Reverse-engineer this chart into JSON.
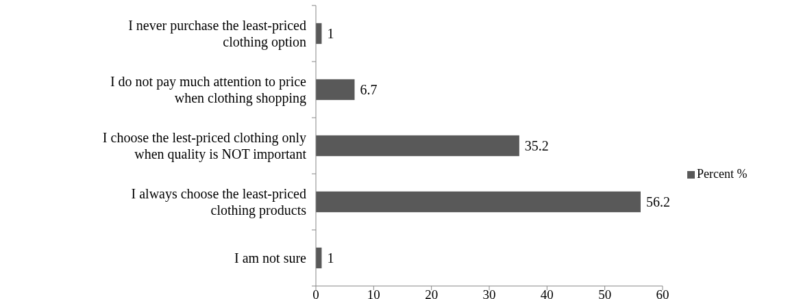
{
  "chart_data": {
    "type": "bar",
    "orientation": "horizontal",
    "categories": [
      "I never purchase the least-priced clothing option",
      "I do not pay much attention to price when clothing shopping",
      "I choose the lest-priced clothing only when quality is NOT important",
      "I always choose the least-priced clothing products",
      "I am not sure"
    ],
    "series": [
      {
        "name": "Percent %",
        "color": "#595959",
        "values": [
          1,
          6.7,
          35.2,
          56.2,
          1
        ]
      }
    ],
    "xlim": [
      0,
      60
    ],
    "xticks": [
      0,
      10,
      20,
      30,
      40,
      50,
      60
    ],
    "grid": false,
    "legend": "right",
    "data_labels": true
  }
}
